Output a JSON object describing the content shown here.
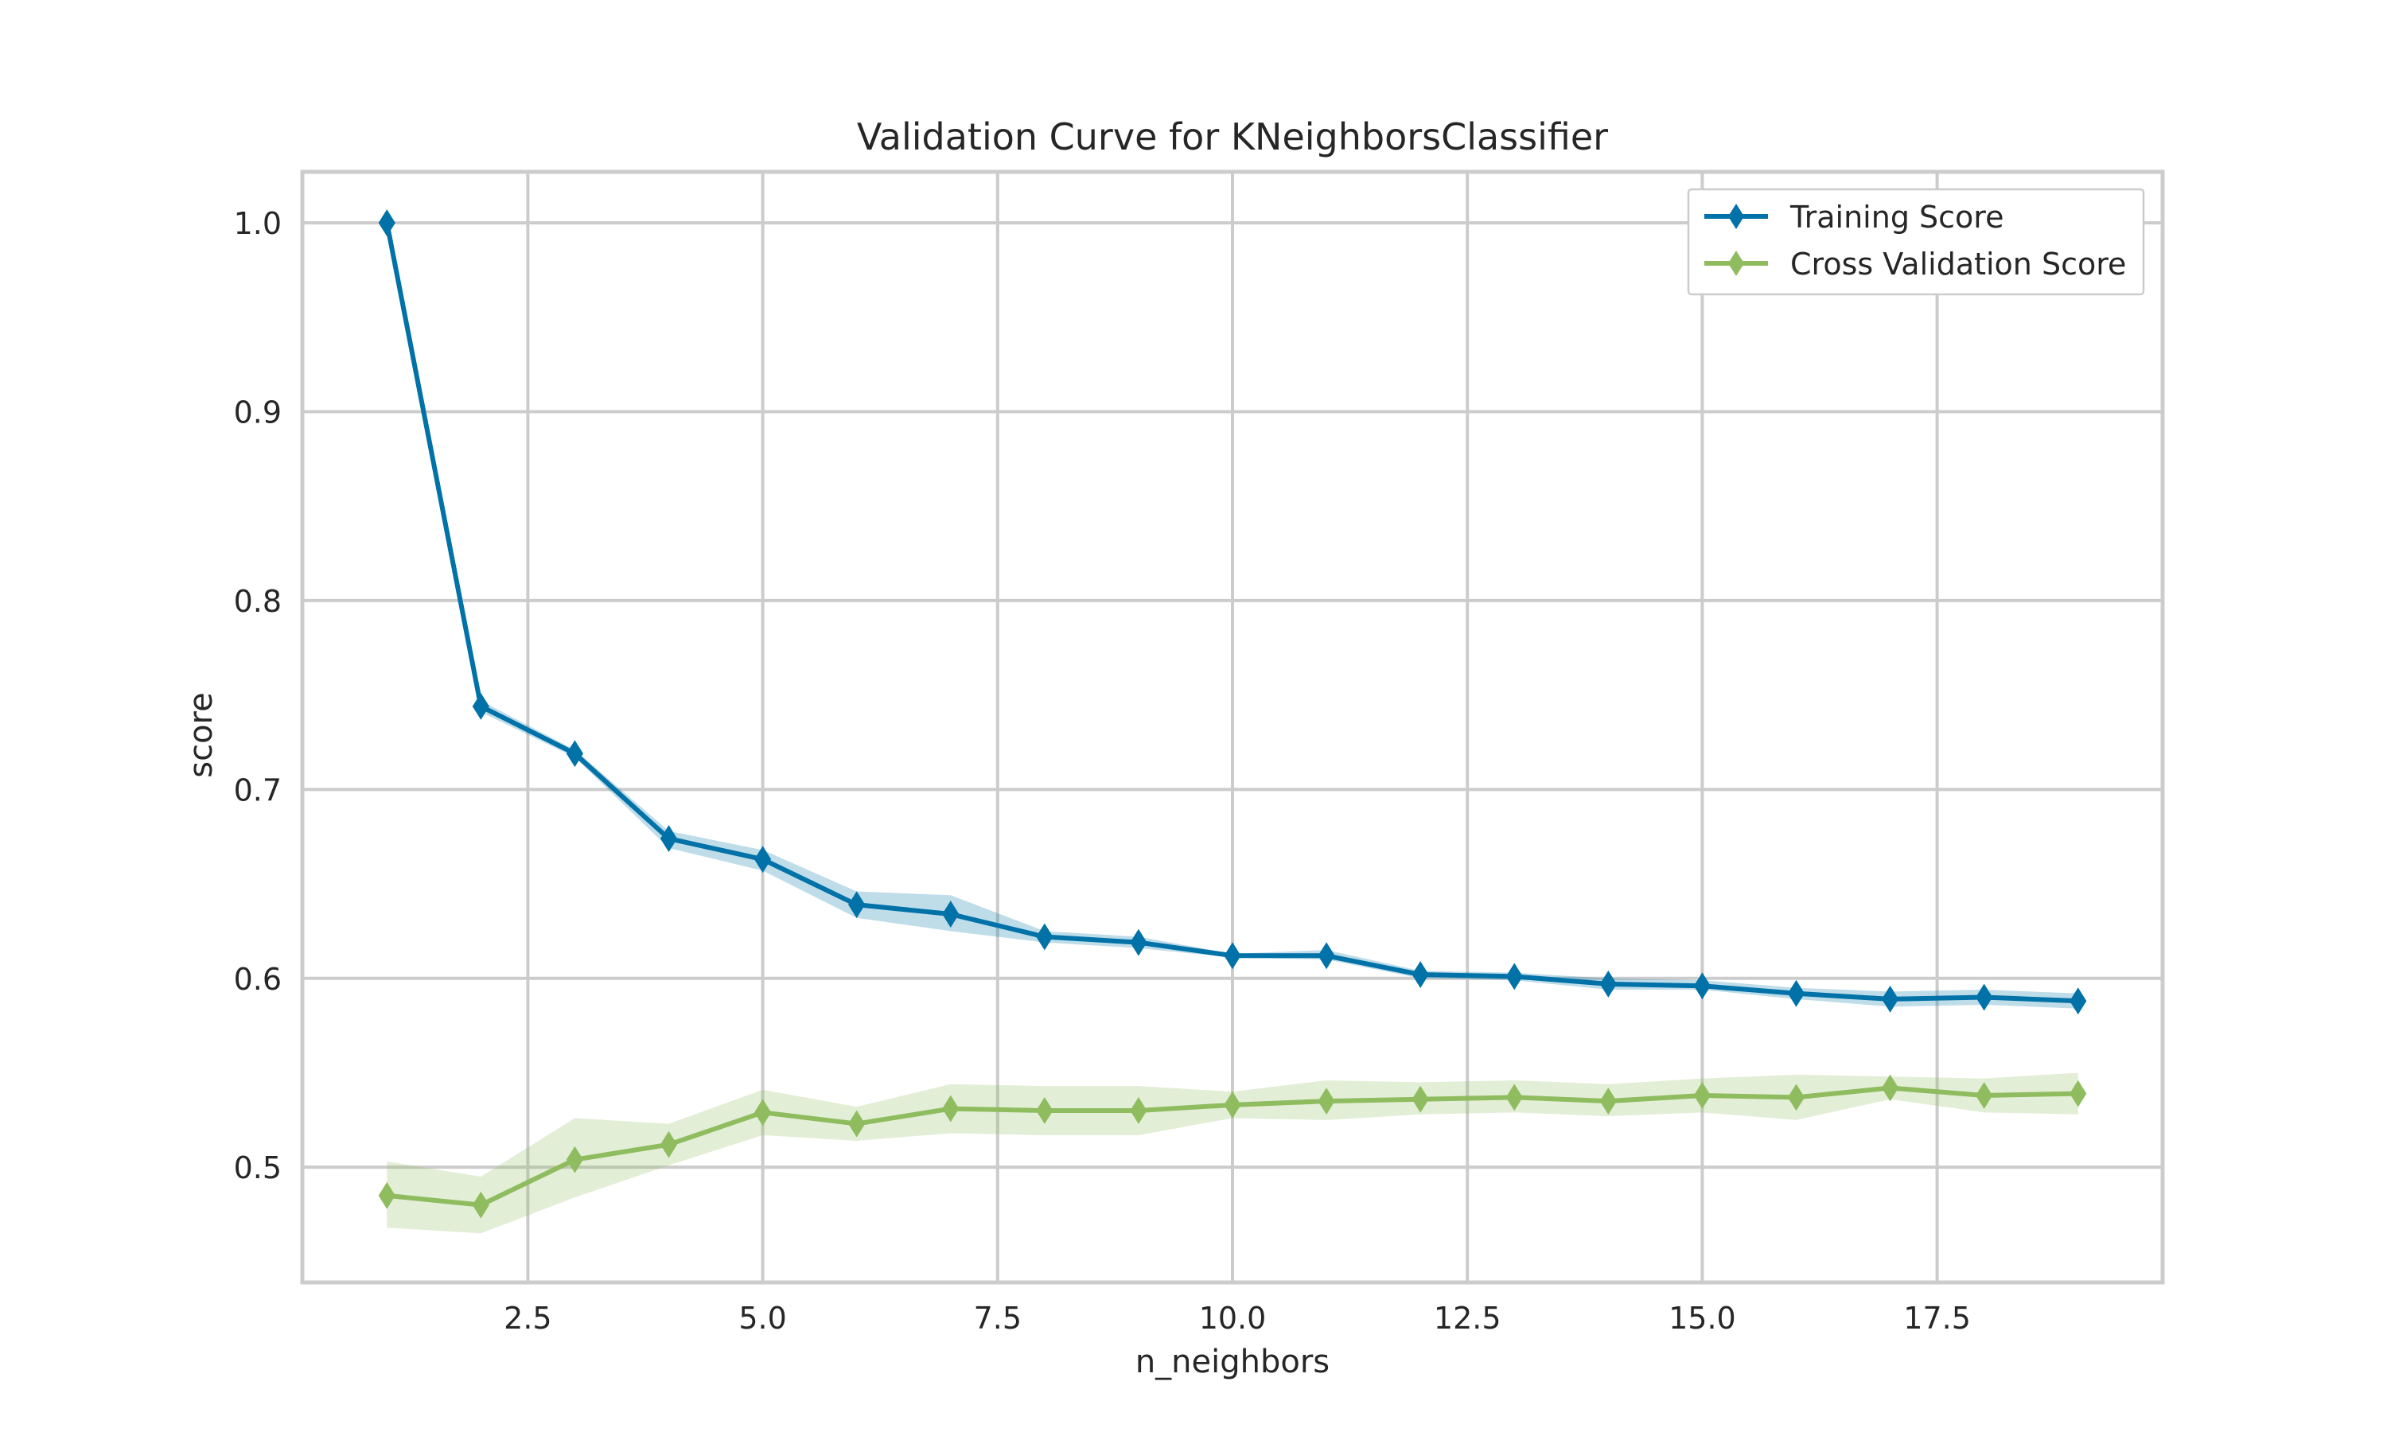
{
  "chart_data": {
    "type": "line",
    "title": "Validation Curve for KNeighborsClassifier",
    "xlabel": "n_neighbors",
    "ylabel": "score",
    "xlim": [
      0.1,
      19.9
    ],
    "ylim": [
      0.439,
      1.027
    ],
    "xticks": [
      2.5,
      5.0,
      7.5,
      10.0,
      12.5,
      15.0,
      17.5
    ],
    "xtick_labels": [
      "2.5",
      "5.0",
      "7.5",
      "10.0",
      "12.5",
      "15.0",
      "17.5"
    ],
    "yticks": [
      0.5,
      0.6,
      0.7,
      0.8,
      0.9,
      1.0
    ],
    "ytick_labels": [
      "0.5",
      "0.6",
      "0.7",
      "0.8",
      "0.9",
      "1.0"
    ],
    "grid": true,
    "legend_position": "top-right",
    "x": [
      1,
      2,
      3,
      4,
      5,
      6,
      7,
      8,
      9,
      10,
      11,
      12,
      13,
      14,
      15,
      16,
      17,
      18,
      19
    ],
    "series": [
      {
        "name": "Training Score",
        "color": "#0072a7",
        "marker": "thin-diamond",
        "values": [
          1.0,
          0.744,
          0.719,
          0.674,
          0.663,
          0.639,
          0.634,
          0.622,
          0.619,
          0.612,
          0.612,
          0.602,
          0.601,
          0.597,
          0.596,
          0.592,
          0.589,
          0.59,
          0.588
        ],
        "band_lower": [
          1.0,
          0.741,
          0.717,
          0.669,
          0.657,
          0.632,
          0.625,
          0.619,
          0.616,
          0.611,
          0.61,
          0.6,
          0.599,
          0.594,
          0.594,
          0.589,
          0.585,
          0.586,
          0.584
        ],
        "band_upper": [
          1.0,
          0.747,
          0.721,
          0.678,
          0.668,
          0.646,
          0.644,
          0.625,
          0.622,
          0.613,
          0.615,
          0.604,
          0.603,
          0.6,
          0.599,
          0.595,
          0.593,
          0.594,
          0.592
        ]
      },
      {
        "name": "Cross Validation Score",
        "color": "#8fbc5f",
        "marker": "thin-diamond",
        "values": [
          0.485,
          0.48,
          0.504,
          0.512,
          0.529,
          0.523,
          0.531,
          0.53,
          0.53,
          0.533,
          0.535,
          0.536,
          0.537,
          0.535,
          0.538,
          0.537,
          0.542,
          0.538,
          0.539
        ],
        "band_lower": [
          0.468,
          0.465,
          0.484,
          0.501,
          0.517,
          0.514,
          0.518,
          0.517,
          0.517,
          0.526,
          0.525,
          0.528,
          0.529,
          0.527,
          0.529,
          0.525,
          0.536,
          0.529,
          0.528
        ],
        "band_upper": [
          0.503,
          0.495,
          0.526,
          0.523,
          0.541,
          0.532,
          0.544,
          0.543,
          0.543,
          0.54,
          0.546,
          0.545,
          0.546,
          0.544,
          0.547,
          0.549,
          0.548,
          0.547,
          0.55
        ]
      }
    ]
  }
}
